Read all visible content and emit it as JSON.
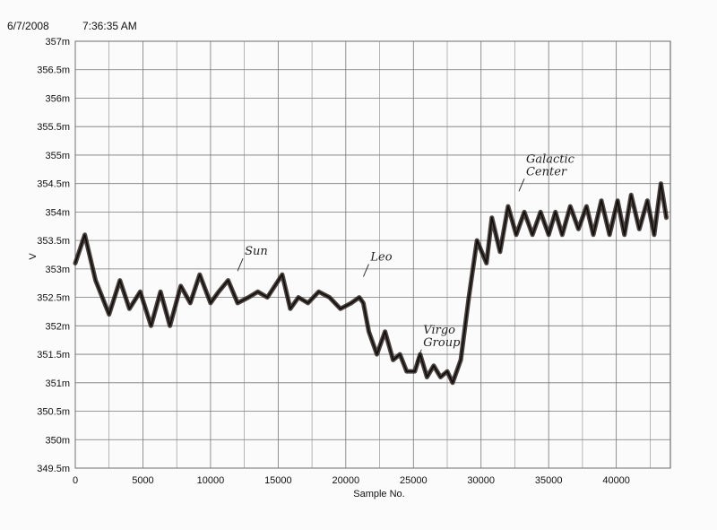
{
  "header": {
    "date": "6/7/2008",
    "time": "7:36:35 AM"
  },
  "chart_data": {
    "type": "line",
    "xlabel": "Sample No.",
    "ylabel": "V",
    "xlim": [
      0,
      44000
    ],
    "ylim": [
      349.5,
      357
    ],
    "grid": true,
    "x_ticks": [
      0,
      5000,
      10000,
      15000,
      20000,
      25000,
      30000,
      35000,
      40000
    ],
    "x_tick_labels": [
      "0",
      "5000",
      "10000",
      "15000",
      "20000",
      "25000",
      "30000",
      "35000",
      "40000"
    ],
    "y_ticks": [
      349.5,
      350,
      350.5,
      351,
      351.5,
      352,
      352.5,
      353,
      353.5,
      354,
      354.5,
      355,
      355.5,
      356,
      356.5,
      357
    ],
    "y_tick_labels": [
      "349.5m",
      "350m",
      "350.5m",
      "351m",
      "351.5m",
      "352m",
      "352.5m",
      "353m",
      "353.5m",
      "354m",
      "354.5m",
      "355m",
      "355.5m",
      "356m",
      "356.5m",
      "357m"
    ],
    "series": [
      {
        "x": [
          0,
          700,
          1500,
          2500,
          3300,
          4000,
          4800,
          5600,
          6300,
          7000,
          7800,
          8500,
          9200,
          10000,
          10600,
          11300,
          12000,
          12800,
          13500,
          14200,
          15300,
          15900,
          16500,
          17200,
          18000,
          18800,
          19600,
          20400,
          21000,
          21300,
          21700,
          22300,
          22900,
          23500,
          24000,
          24500,
          25100,
          25500,
          26000,
          26500,
          27000,
          27500,
          27900,
          28500,
          29100,
          29700,
          30400,
          30800,
          31400,
          32000,
          32600,
          33200,
          33800,
          34400,
          35000,
          35500,
          36000,
          36600,
          37200,
          37800,
          38300,
          38900,
          39500,
          40100,
          40600,
          41100,
          41700,
          42300,
          42800,
          43300,
          43700
        ],
        "y": [
          353.1,
          353.6,
          352.8,
          352.2,
          352.8,
          352.3,
          352.6,
          352,
          352.6,
          352,
          352.7,
          352.4,
          352.9,
          352.4,
          352.6,
          352.8,
          352.4,
          352.5,
          352.6,
          352.5,
          352.9,
          352.3,
          352.5,
          352.4,
          352.6,
          352.5,
          352.3,
          352.4,
          352.5,
          352.4,
          351.9,
          351.5,
          351.9,
          351.4,
          351.5,
          351.2,
          351.2,
          351.5,
          351.1,
          351.3,
          351.1,
          351.2,
          351,
          351.4,
          352.5,
          353.5,
          353.1,
          353.9,
          353.3,
          354.1,
          353.6,
          354,
          353.6,
          354,
          353.6,
          354,
          353.6,
          354.1,
          353.7,
          354.1,
          353.6,
          354.2,
          353.6,
          354.2,
          353.6,
          354.3,
          353.7,
          354.2,
          353.6,
          354.5,
          353.9
        ]
      }
    ],
    "annotations": [
      {
        "text": "Sun",
        "x": 12000,
        "y": 352.9
      },
      {
        "text": "Leo",
        "x": 21300,
        "y": 352.8
      },
      {
        "text": "Virgo Group",
        "x": 25200,
        "y": 351.3
      },
      {
        "text": "Galactic Center",
        "x": 32800,
        "y": 354.3
      }
    ]
  }
}
